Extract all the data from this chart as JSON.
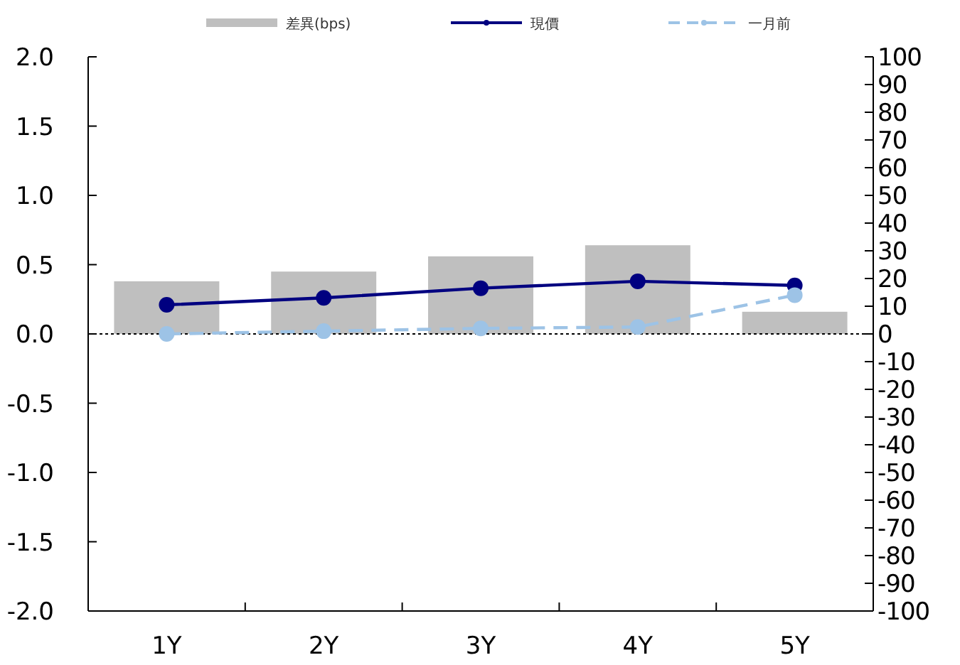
{
  "chart_data": {
    "type": "bar",
    "categories": [
      "1Y",
      "2Y",
      "3Y",
      "4Y",
      "5Y"
    ],
    "series": [
      {
        "name": "差異(bps)",
        "axis": "y2",
        "color": "#bfbfbf",
        "values": [
          19,
          22.5,
          28,
          32,
          8
        ]
      },
      {
        "name": "現價",
        "type": "line",
        "color": "#000080",
        "marker": "circle",
        "line_style": "solid",
        "values": [
          0.21,
          0.26,
          0.33,
          0.38,
          0.35
        ]
      },
      {
        "name": "一月前",
        "type": "line",
        "color": "#9dc3e6",
        "marker": "circle",
        "line_style": "dashed",
        "values": [
          0.0,
          0.02,
          0.04,
          0.05,
          0.28
        ]
      }
    ],
    "ylim": [
      -2,
      2
    ],
    "yticks": [
      {
        "value": -2,
        "label": "-2.0"
      },
      {
        "value": -1.5,
        "label": "-1.5"
      },
      {
        "value": -1,
        "label": "-1.0"
      },
      {
        "value": -0.5,
        "label": "-0.5"
      },
      {
        "value": 0,
        "label": "0.0"
      },
      {
        "value": 0.5,
        "label": "0.5"
      },
      {
        "value": 1,
        "label": "1.0"
      },
      {
        "value": 1.5,
        "label": "1.5"
      },
      {
        "value": 2,
        "label": "2.0"
      }
    ],
    "y2lim": [
      -100,
      100
    ],
    "y2ticks": [
      -100,
      -90,
      -80,
      -70,
      -60,
      -50,
      -40,
      -30,
      -20,
      -10,
      0,
      10,
      20,
      30,
      40,
      50,
      60,
      70,
      80,
      90,
      100
    ],
    "legend": "top"
  }
}
